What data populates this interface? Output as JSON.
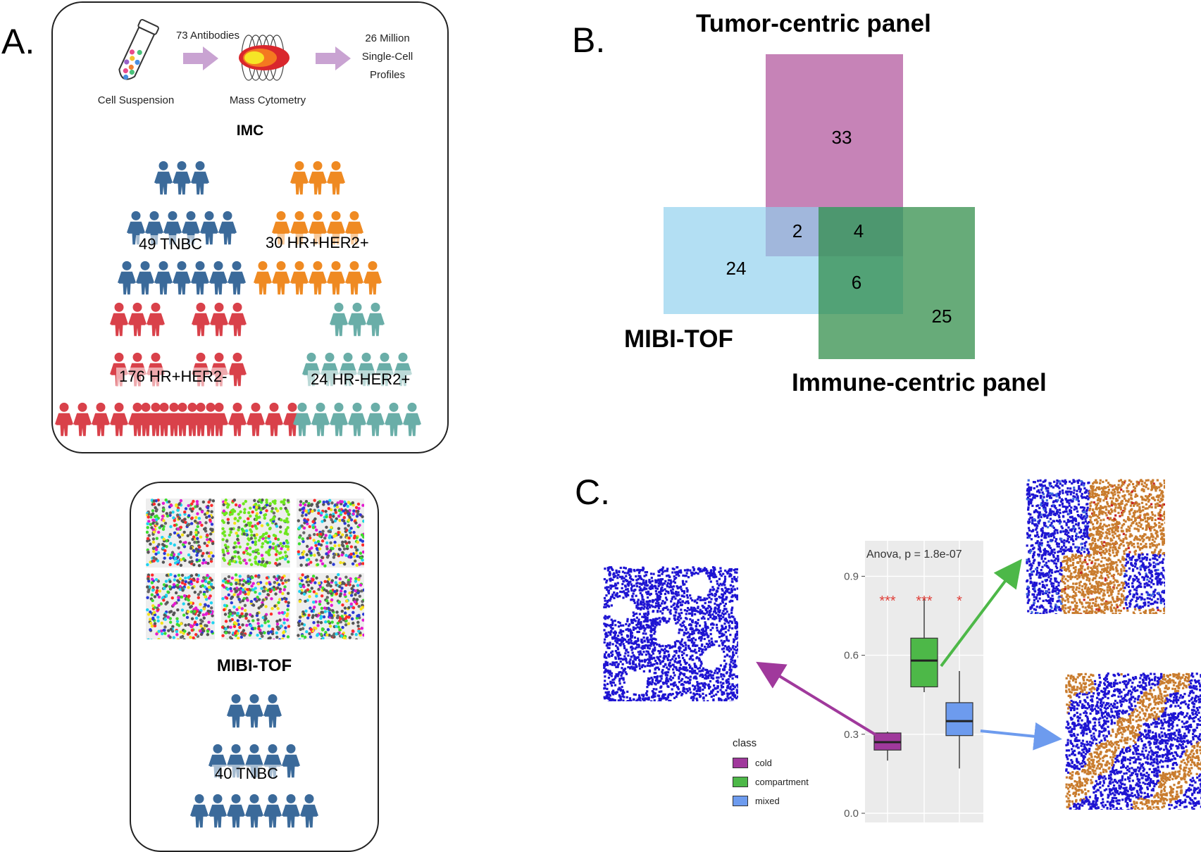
{
  "panelA": {
    "letter": "A.",
    "workflow": {
      "step1_label": "Cell Suspension",
      "arrow1_label": "73 Antibodies",
      "step2_label": "Mass Cytometry",
      "result_label": "26 Million Single-Cell Profiles"
    },
    "imc_title": "IMC",
    "cohorts": [
      {
        "label": "49 TNBC",
        "color": "#3b6a9a"
      },
      {
        "label": "30 HR+HER2+",
        "color": "#ef8a22"
      },
      {
        "label": "176 HR+HER2-",
        "color": "#d9414a"
      },
      {
        "label": "24 HR-HER2+",
        "color": "#6aaea8"
      }
    ],
    "mibi_title": "MIBI-TOF",
    "mibi_cohort": {
      "label": "40 TNBC",
      "color": "#3b6a9a"
    }
  },
  "panelB": {
    "letter": "B.",
    "tumor_label": "Tumor-centric panel",
    "mibi_label": "MIBI-TOF",
    "immune_label": "Immune-centric panel",
    "colors": {
      "tumor": "#b35a9f",
      "mibi": "#8fd0ee",
      "immune": "#2d8a45"
    },
    "counts": {
      "tumor_only": "33",
      "tumor_mibi": "2",
      "all_three": "4",
      "mibi_only": "24",
      "mibi_immune": "6",
      "immune_only": "25"
    }
  },
  "panelC": {
    "letter": "C.",
    "stat_label": "Anova, p = 1.8e-07",
    "legend_title": "class",
    "chart_data": {
      "type": "box",
      "title": "",
      "xlabel": "",
      "ylabel": "",
      "ylim": [
        0.0,
        1.0
      ],
      "yticks": [
        "0.0",
        "0.3",
        "0.6",
        "0.9"
      ],
      "grid": true,
      "legend_placement": "left",
      "annotation": "Anova, p = 1.8e-07",
      "series": [
        {
          "name": "cold",
          "color": "#a0399c",
          "min": 0.2,
          "q1": 0.24,
          "median": 0.27,
          "q3": 0.305,
          "max": 0.31,
          "significance": "***"
        },
        {
          "name": "compartment",
          "color": "#4db848",
          "min": 0.46,
          "q1": 0.48,
          "median": 0.58,
          "q3": 0.665,
          "max": 0.82,
          "significance": "***"
        },
        {
          "name": "mixed",
          "color": "#6d9bee",
          "min": 0.17,
          "q1": 0.295,
          "median": 0.35,
          "q3": 0.42,
          "max": 0.54,
          "significance": "*"
        }
      ]
    }
  }
}
